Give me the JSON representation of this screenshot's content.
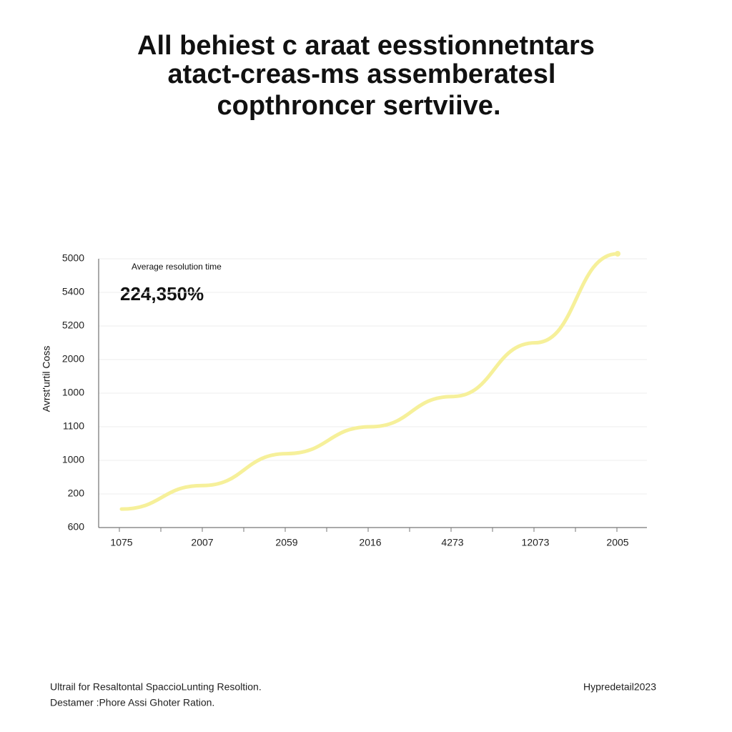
{
  "chart_data": {
    "type": "line",
    "title": [
      "All behiest c araat eesstionnetntars",
      "atact-creas-ms assemberatesl",
      "copthroncer sertviive."
    ],
    "annotation_label": "Average resolution time",
    "annotation_value": "224,350%",
    "ylabel": "Avrst'urtil Coss",
    "categories": [
      "1075",
      "2007",
      "2059",
      "2016",
      "4273",
      "12073",
      "2005"
    ],
    "ylim": [
      0,
      8
    ],
    "yticks": [
      {
        "value": 8,
        "label": "5000"
      },
      {
        "value": 7,
        "label": "5400"
      },
      {
        "value": 6,
        "label": "5200"
      },
      {
        "value": 5,
        "label": "2000"
      },
      {
        "value": 4,
        "label": "1000"
      },
      {
        "value": 3,
        "label": "1100"
      },
      {
        "value": 2,
        "label": "1000"
      },
      {
        "value": 1,
        "label": "200"
      },
      {
        "value": 0,
        "label": "600"
      }
    ],
    "series": [
      {
        "color": "#f6f09a",
        "values": [
          0.55,
          1.25,
          2.2,
          3.0,
          3.9,
          5.5,
          8.15
        ]
      }
    ],
    "grid": true,
    "footer_left": [
      "Ultrail for Resaltontal SpaccioLunting Resoltion.",
      "Destamer :Phore Assi Ghoter Ration."
    ],
    "footer_right": "Hypredetail2023"
  }
}
